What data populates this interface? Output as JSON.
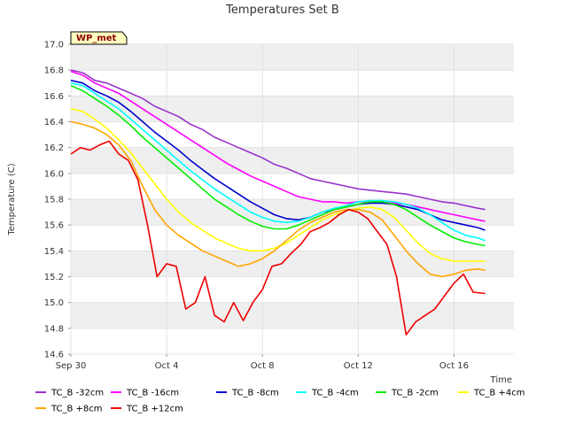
{
  "chart_data": {
    "type": "line",
    "title": "Temperatures Set B",
    "xlabel": "Time",
    "ylabel": "Temperature (C)",
    "badge": "WP_met",
    "xlim": [
      0,
      18.5
    ],
    "ylim": [
      14.6,
      17.0
    ],
    "yticks": [
      14.6,
      14.8,
      15.0,
      15.2,
      15.4,
      15.6,
      15.8,
      16.0,
      16.2,
      16.4,
      16.6,
      16.8,
      17.0
    ],
    "xticks": [
      {
        "day": 0,
        "label": "Sep 30"
      },
      {
        "day": 4,
        "label": "Oct 4"
      },
      {
        "day": 8,
        "label": "Oct 8"
      },
      {
        "day": 12,
        "label": "Oct 12"
      },
      {
        "day": 16,
        "label": "Oct 16"
      }
    ],
    "grid": true,
    "legend_position": "bottom",
    "series": [
      {
        "name": "TC_B -32cm",
        "color": "#9932cc",
        "x": [
          0,
          0.5,
          1,
          1.5,
          2,
          2.5,
          3,
          3.5,
          4,
          4.5,
          5,
          5.5,
          6,
          6.5,
          7,
          7.5,
          8,
          8.5,
          9,
          9.5,
          10,
          10.5,
          11,
          11.5,
          12,
          12.5,
          13,
          13.5,
          14,
          14.5,
          15,
          15.5,
          16,
          16.5,
          17,
          17.3
        ],
        "values": [
          16.8,
          16.78,
          16.72,
          16.7,
          16.66,
          16.62,
          16.58,
          16.52,
          16.48,
          16.44,
          16.38,
          16.34,
          16.28,
          16.24,
          16.2,
          16.16,
          16.12,
          16.07,
          16.04,
          16.0,
          15.96,
          15.94,
          15.92,
          15.9,
          15.88,
          15.87,
          15.86,
          15.85,
          15.84,
          15.82,
          15.8,
          15.78,
          15.77,
          15.75,
          15.73,
          15.72
        ]
      },
      {
        "name": "TC_B -16cm",
        "color": "#ff00ff",
        "x": [
          0,
          0.5,
          1,
          1.5,
          2,
          2.5,
          3,
          3.5,
          4,
          4.5,
          5,
          5.5,
          6,
          6.5,
          7,
          7.5,
          8,
          8.5,
          9,
          9.5,
          10,
          10.5,
          11,
          11.5,
          12,
          12.5,
          13,
          13.5,
          14,
          14.5,
          15,
          15.5,
          16,
          16.5,
          17,
          17.3
        ],
        "values": [
          16.79,
          16.76,
          16.7,
          16.66,
          16.62,
          16.56,
          16.5,
          16.44,
          16.38,
          16.32,
          16.26,
          16.2,
          16.14,
          16.08,
          16.03,
          15.98,
          15.94,
          15.9,
          15.86,
          15.82,
          15.8,
          15.78,
          15.78,
          15.77,
          15.78,
          15.78,
          15.78,
          15.77,
          15.76,
          15.74,
          15.72,
          15.7,
          15.68,
          15.66,
          15.64,
          15.63
        ]
      },
      {
        "name": "TC_B -8cm",
        "color": "#0000cd",
        "x": [
          0,
          0.5,
          1,
          1.5,
          2,
          2.5,
          3,
          3.5,
          4,
          4.5,
          5,
          5.5,
          6,
          6.5,
          7,
          7.5,
          8,
          8.5,
          9,
          9.5,
          10,
          10.5,
          11,
          11.5,
          12,
          12.5,
          13,
          13.5,
          14,
          14.5,
          15,
          15.5,
          16,
          16.5,
          17,
          17.3
        ],
        "values": [
          16.72,
          16.7,
          16.64,
          16.6,
          16.55,
          16.48,
          16.4,
          16.32,
          16.25,
          16.18,
          16.1,
          16.03,
          15.96,
          15.9,
          15.84,
          15.78,
          15.73,
          15.68,
          15.65,
          15.64,
          15.66,
          15.7,
          15.72,
          15.74,
          15.76,
          15.77,
          15.77,
          15.76,
          15.74,
          15.72,
          15.68,
          15.64,
          15.62,
          15.6,
          15.58,
          15.56
        ]
      },
      {
        "name": "TC_B -4cm",
        "color": "#00ffff",
        "x": [
          0,
          0.5,
          1,
          1.5,
          2,
          2.5,
          3,
          3.5,
          4,
          4.5,
          5,
          5.5,
          6,
          6.5,
          7,
          7.5,
          8,
          8.5,
          9,
          9.5,
          10,
          10.5,
          11,
          11.5,
          12,
          12.5,
          13,
          13.5,
          14,
          14.5,
          15,
          15.5,
          16,
          16.5,
          17,
          17.3
        ],
        "values": [
          16.7,
          16.68,
          16.62,
          16.56,
          16.5,
          16.42,
          16.34,
          16.26,
          16.18,
          16.1,
          16.02,
          15.95,
          15.88,
          15.82,
          15.76,
          15.7,
          15.66,
          15.63,
          15.62,
          15.63,
          15.66,
          15.7,
          15.73,
          15.75,
          15.78,
          15.79,
          15.79,
          15.78,
          15.76,
          15.73,
          15.68,
          15.62,
          15.56,
          15.52,
          15.5,
          15.48
        ]
      },
      {
        "name": "TC_B -2cm",
        "color": "#00ee00",
        "x": [
          0,
          0.5,
          1,
          1.5,
          2,
          2.5,
          3,
          3.5,
          4,
          4.5,
          5,
          5.5,
          6,
          6.5,
          7,
          7.5,
          8,
          8.5,
          9,
          9.5,
          10,
          10.5,
          11,
          11.5,
          12,
          12.5,
          13,
          13.5,
          14,
          14.5,
          15,
          15.5,
          16,
          16.5,
          17,
          17.3
        ],
        "values": [
          16.68,
          16.64,
          16.58,
          16.52,
          16.45,
          16.37,
          16.28,
          16.2,
          16.12,
          16.04,
          15.96,
          15.88,
          15.8,
          15.74,
          15.68,
          15.63,
          15.59,
          15.57,
          15.57,
          15.6,
          15.64,
          15.68,
          15.72,
          15.74,
          15.76,
          15.78,
          15.78,
          15.76,
          15.72,
          15.66,
          15.6,
          15.55,
          15.5,
          15.47,
          15.45,
          15.44
        ]
      },
      {
        "name": "TC_B +4cm",
        "color": "#ffff00",
        "x": [
          0,
          0.5,
          1,
          1.5,
          2,
          2.5,
          3,
          3.5,
          4,
          4.5,
          5,
          5.5,
          6,
          6.5,
          7,
          7.5,
          8,
          8.5,
          9,
          9.5,
          10,
          10.5,
          11,
          11.5,
          12,
          12.5,
          13,
          13.5,
          14,
          14.5,
          15,
          15.5,
          16,
          16.5,
          17,
          17.3
        ],
        "values": [
          16.5,
          16.48,
          16.42,
          16.35,
          16.26,
          16.16,
          16.04,
          15.92,
          15.8,
          15.7,
          15.62,
          15.56,
          15.5,
          15.46,
          15.42,
          15.4,
          15.4,
          15.42,
          15.46,
          15.52,
          15.58,
          15.64,
          15.68,
          15.71,
          15.73,
          15.74,
          15.72,
          15.66,
          15.56,
          15.46,
          15.38,
          15.34,
          15.32,
          15.32,
          15.32,
          15.32
        ]
      },
      {
        "name": "TC_B +8cm",
        "color": "#ffa500",
        "x": [
          0,
          0.5,
          1,
          1.5,
          2,
          2.5,
          3,
          3.5,
          4,
          4.5,
          5,
          5.5,
          6,
          6.5,
          7,
          7.5,
          8,
          8.5,
          9,
          9.5,
          10,
          10.5,
          11,
          11.5,
          12,
          12.5,
          13,
          13.5,
          14,
          14.5,
          15,
          15.5,
          16,
          16.5,
          17,
          17.3
        ],
        "values": [
          16.4,
          16.38,
          16.35,
          16.3,
          16.22,
          16.1,
          15.9,
          15.72,
          15.6,
          15.52,
          15.46,
          15.4,
          15.36,
          15.32,
          15.28,
          15.3,
          15.34,
          15.4,
          15.48,
          15.56,
          15.62,
          15.66,
          15.7,
          15.72,
          15.72,
          15.7,
          15.64,
          15.52,
          15.4,
          15.3,
          15.22,
          15.2,
          15.22,
          15.25,
          15.26,
          15.25
        ]
      },
      {
        "name": "TC_B +12cm",
        "color": "#ee0000",
        "x": [
          0,
          0.4,
          0.8,
          1.2,
          1.6,
          2.0,
          2.4,
          2.8,
          3.2,
          3.6,
          4.0,
          4.4,
          4.8,
          5.2,
          5.6,
          6.0,
          6.4,
          6.8,
          7.2,
          7.6,
          8.0,
          8.4,
          8.8,
          9.2,
          9.6,
          10.0,
          10.4,
          10.8,
          11.2,
          11.6,
          12.0,
          12.4,
          12.8,
          13.2,
          13.6,
          14.0,
          14.4,
          14.8,
          15.2,
          15.6,
          16.0,
          16.4,
          16.8,
          17.3
        ],
        "values": [
          16.15,
          16.2,
          16.18,
          16.22,
          16.25,
          16.15,
          16.1,
          15.95,
          15.6,
          15.2,
          15.3,
          15.28,
          14.95,
          15.0,
          15.2,
          14.9,
          14.85,
          15.0,
          14.86,
          15.0,
          15.1,
          15.28,
          15.3,
          15.38,
          15.45,
          15.55,
          15.58,
          15.62,
          15.68,
          15.72,
          15.7,
          15.65,
          15.55,
          15.45,
          15.2,
          14.75,
          14.85,
          14.9,
          14.95,
          15.05,
          15.15,
          15.22,
          15.08,
          15.07
        ]
      }
    ]
  }
}
